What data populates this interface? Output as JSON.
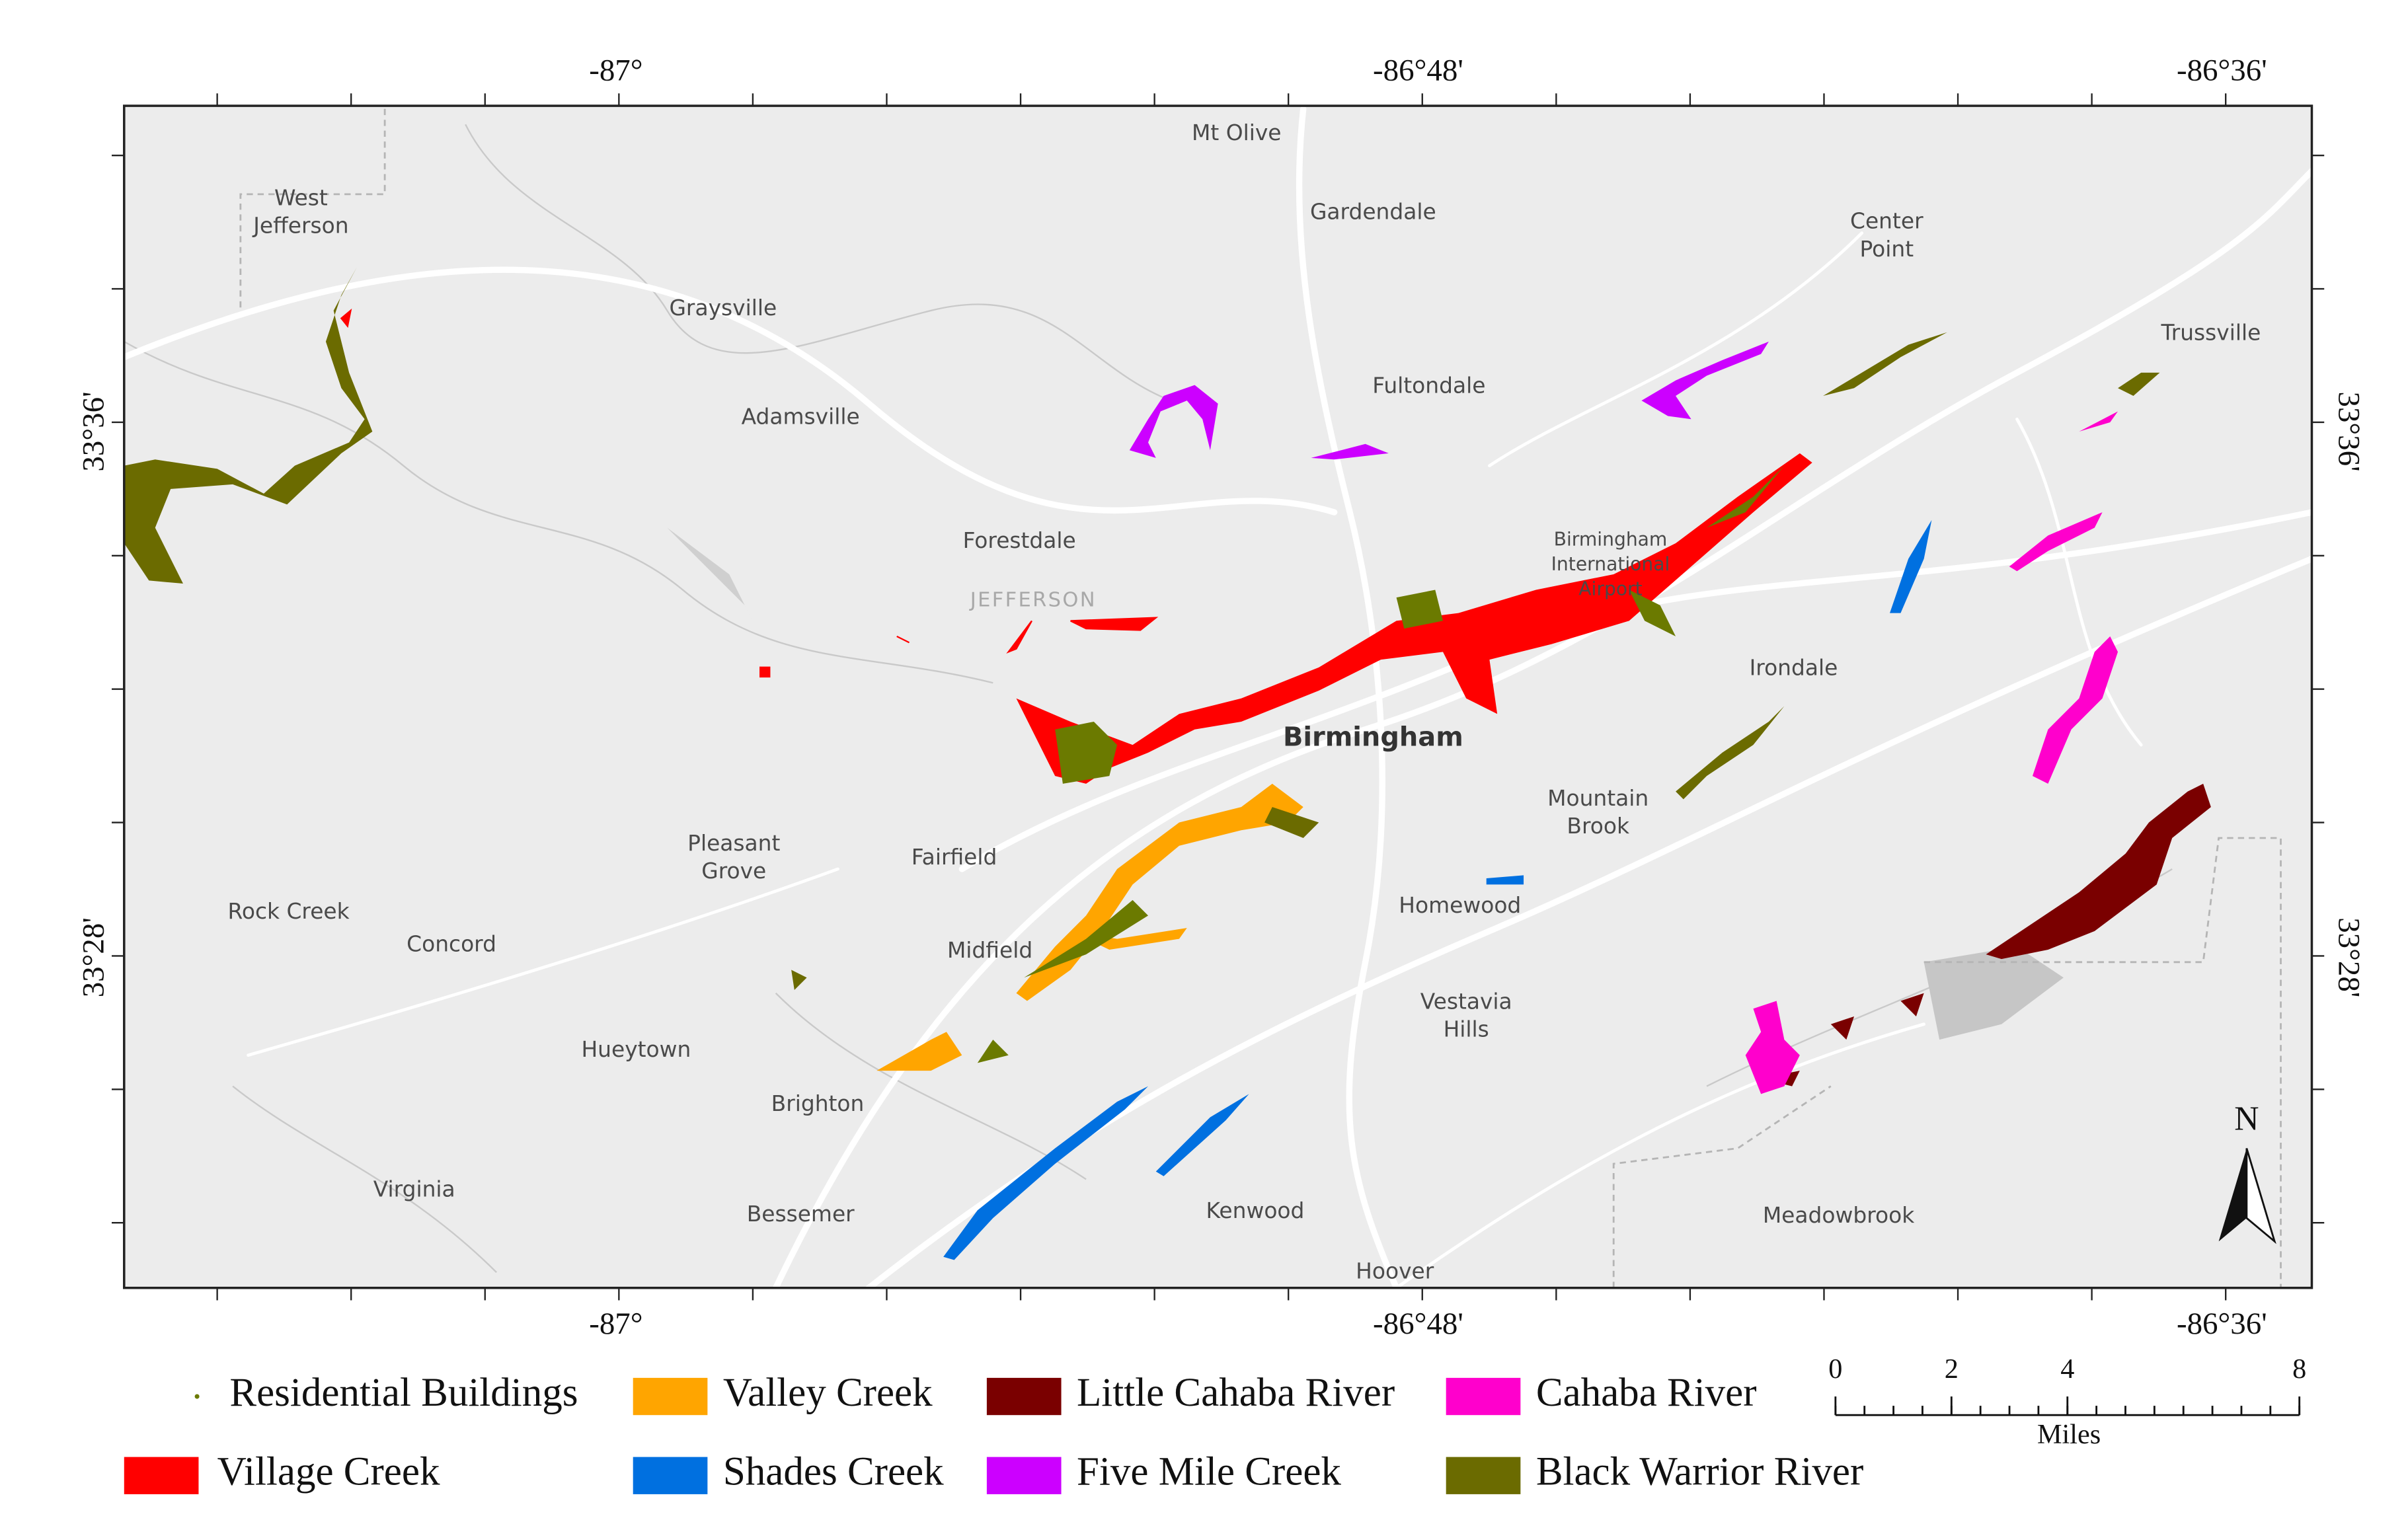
{
  "coordinates": {
    "top": [
      "-87°",
      "-86°48'",
      "-86°36'"
    ],
    "bottom": [
      "-87°",
      "-86°48'",
      "-86°36'"
    ],
    "left": [
      "33°36'",
      "33°28'"
    ],
    "right": [
      "33°36'",
      "33°28'"
    ]
  },
  "places": [
    {
      "lines": [
        "Mt Olive"
      ]
    },
    {
      "lines": [
        "West",
        "Jefferson"
      ]
    },
    {
      "lines": [
        "Gardendale"
      ]
    },
    {
      "lines": [
        "Center",
        "Point"
      ]
    },
    {
      "lines": [
        "Graysville"
      ]
    },
    {
      "lines": [
        "Trussville"
      ]
    },
    {
      "lines": [
        "Fultondale"
      ]
    },
    {
      "lines": [
        "Adamsville"
      ]
    },
    {
      "lines": [
        "Forestdale"
      ]
    },
    {
      "lines": [
        "JEFFERSON"
      ]
    },
    {
      "lines": [
        "Birmingham",
        "International",
        "Airport"
      ]
    },
    {
      "lines": [
        "Irondale"
      ]
    },
    {
      "lines": [
        "Birmingham"
      ]
    },
    {
      "lines": [
        "Mountain",
        "Brook"
      ]
    },
    {
      "lines": [
        "Pleasant",
        "Grove"
      ]
    },
    {
      "lines": [
        "Fairfield"
      ]
    },
    {
      "lines": [
        "Rock Creek"
      ]
    },
    {
      "lines": [
        "Concord"
      ]
    },
    {
      "lines": [
        "Homewood"
      ]
    },
    {
      "lines": [
        "Midfield"
      ]
    },
    {
      "lines": [
        "Vestavia",
        "Hills"
      ]
    },
    {
      "lines": [
        "Hueytown"
      ]
    },
    {
      "lines": [
        "Brighton"
      ]
    },
    {
      "lines": [
        "Virginia"
      ]
    },
    {
      "lines": [
        "Bessemer"
      ]
    },
    {
      "lines": [
        "Kenwood"
      ]
    },
    {
      "lines": [
        "Meadowbrook"
      ]
    },
    {
      "lines": [
        "Hoover"
      ]
    }
  ],
  "legend": [
    {
      "name": "Residential Buildings",
      "color": "#6b7a00"
    },
    {
      "name": "Valley Creek",
      "color": "#ffa500"
    },
    {
      "name": "Little Cahaba River",
      "color": "#7a0000"
    },
    {
      "name": "Cahaba River",
      "color": "#ff00cc"
    },
    {
      "name": "Village Creek",
      "color": "#ff0000"
    },
    {
      "name": "Shades Creek",
      "color": "#0070e0"
    },
    {
      "name": "Five Mile Creek",
      "color": "#cc00ff"
    },
    {
      "name": "Black Warrior River",
      "color": "#6b6b00"
    }
  ],
  "scale": {
    "ticks": [
      0,
      2,
      4,
      8
    ],
    "unit": "Miles"
  },
  "north": "N"
}
